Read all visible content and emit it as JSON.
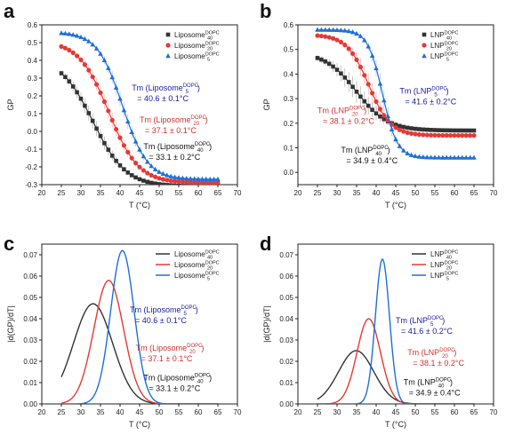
{
  "colors": {
    "black": "#333333",
    "red": "#e53935",
    "blue": "#1e6fd9",
    "ann_black": "#111111",
    "ann_red": "#d32f2f",
    "ann_blue": "#1a1a9c"
  },
  "xlabel": "T (°C)",
  "chart_data": [
    {
      "panel": "a",
      "type": "scatter",
      "xlabel": "T (°C)",
      "ylabel": "GP",
      "xlim": [
        20,
        70
      ],
      "ylim": [
        -0.3,
        0.6
      ],
      "xticks": [
        20,
        25,
        30,
        35,
        40,
        45,
        50,
        55,
        60,
        65,
        70
      ],
      "yticks": [
        -0.3,
        -0.2,
        -0.1,
        0.0,
        0.1,
        0.2,
        0.3,
        0.4,
        0.5,
        0.6
      ],
      "ytick_labels": [
        "-0.3",
        "-0.2",
        "-0.1",
        "0.0",
        "0.1",
        "0.2",
        "0.3",
        "0.4",
        "0.5",
        "0.6"
      ],
      "legend_position": "top-right",
      "series": [
        {
          "base": "Liposome",
          "sub": "40",
          "sup": "DOPC",
          "color": "black",
          "marker": "square",
          "top": 0.42,
          "bottom": -0.31,
          "tm": 33.1,
          "w": 4.2
        },
        {
          "base": "Liposome",
          "sub": "20",
          "sup": "DOPC",
          "color": "red",
          "marker": "circle",
          "top": 0.51,
          "bottom": -0.29,
          "tm": 37.1,
          "w": 3.8
        },
        {
          "base": "Liposome",
          "sub": "5",
          "sup": "DOPC",
          "color": "blue",
          "marker": "triangle",
          "top": 0.56,
          "bottom": -0.27,
          "tm": 40.6,
          "w": 3.2
        }
      ],
      "annotations": [
        {
          "line1": "Tm (Liposome",
          "sub": "5",
          "sup": "DOPC",
          "close": ")",
          "line2": "= 40.6 ± 0.1°C",
          "color": "ann_blue",
          "x": 43,
          "y": 0.23
        },
        {
          "line1": "Tm (Liposome",
          "sub": "20",
          "sup": "DOPC",
          "close": ")",
          "line2": "= 37.1 ± 0.1°C",
          "color": "ann_red",
          "x": 45,
          "y": 0.05
        },
        {
          "line1": "Tm (Liposome",
          "sub": "40",
          "sup": "DOPC",
          "close": ")",
          "line2": "= 33.1 ± 0.2°C",
          "color": "ann_black",
          "x": 46,
          "y": -0.1
        }
      ]
    },
    {
      "panel": "b",
      "type": "scatter",
      "xlabel": "T (°C)",
      "ylabel": "GP",
      "xlim": [
        20,
        70
      ],
      "ylim": [
        -0.05,
        0.6
      ],
      "xticks": [
        20,
        25,
        30,
        35,
        40,
        45,
        50,
        55,
        60,
        65,
        70
      ],
      "yticks": [
        0.0,
        0.1,
        0.2,
        0.3,
        0.4,
        0.5,
        0.6
      ],
      "ytick_labels": [
        "0.0",
        "0.1",
        "0.2",
        "0.3",
        "0.4",
        "0.5",
        "0.6"
      ],
      "legend_position": "top-right",
      "series": [
        {
          "base": "LNP",
          "sub": "40",
          "sup": "DOPC",
          "color": "black",
          "marker": "square",
          "top": 0.49,
          "bottom": 0.17,
          "tm": 34.9,
          "w": 4.0
        },
        {
          "base": "LNP",
          "sub": "20",
          "sup": "DOPC",
          "color": "red",
          "marker": "circle",
          "top": 0.56,
          "bottom": 0.15,
          "tm": 38.1,
          "w": 2.8
        },
        {
          "base": "LNP",
          "sub": "5",
          "sup": "DOPC",
          "color": "blue",
          "marker": "triangle",
          "top": 0.58,
          "bottom": 0.06,
          "tm": 41.6,
          "w": 1.9
        }
      ],
      "annotations": [
        {
          "line1": "Tm (LNP",
          "sub": "5",
          "sup": "DOPC",
          "close": ")",
          "line2": "= 41.6 ± 0.2°C",
          "color": "ann_blue",
          "x": 46,
          "y": 0.32
        },
        {
          "line1": "Tm (LNP",
          "sub": "20",
          "sup": "DOPC",
          "close": ")",
          "line2": "= 38.1 ± 0.2°C",
          "color": "ann_red",
          "x": 25,
          "y": 0.24
        },
        {
          "line1": "Tm (LNP",
          "sub": "40",
          "sup": "DOPC",
          "close": ")",
          "line2": "= 34.9 ± 0.4°C",
          "color": "ann_black",
          "x": 31,
          "y": 0.08
        }
      ]
    },
    {
      "panel": "c",
      "type": "line",
      "xlabel": "T (°C)",
      "ylabel": "|d(GP)/dT|",
      "xlim": [
        20,
        70
      ],
      "ylim": [
        0,
        0.075
      ],
      "xticks": [
        20,
        25,
        30,
        35,
        40,
        45,
        50,
        55,
        60,
        65,
        70
      ],
      "yticks": [
        0,
        0.01,
        0.02,
        0.03,
        0.04,
        0.05,
        0.06,
        0.07
      ],
      "ytick_labels": [
        "0.00",
        "0.01",
        "0.02",
        "0.03",
        "0.04",
        "0.05",
        "0.06",
        "0.07"
      ],
      "legend_position": "top-right",
      "series": [
        {
          "base": "Liposome",
          "sub": "40",
          "sup": "DOPC",
          "color": "black",
          "peak": 0.047,
          "tm": 33.1,
          "w": 5.0
        },
        {
          "base": "Liposome",
          "sub": "20",
          "sup": "DOPC",
          "color": "red",
          "peak": 0.058,
          "tm": 37.1,
          "w": 3.8
        },
        {
          "base": "Liposome",
          "sub": "5",
          "sup": "DOPC",
          "color": "blue",
          "peak": 0.072,
          "tm": 40.6,
          "w": 3.0
        }
      ],
      "annotations": [
        {
          "line1": "Tm (Liposome",
          "sub": "5",
          "sup": "DOPC",
          "close": ")",
          "line2": "= 40.6 ± 0.1°C",
          "color": "ann_blue",
          "x": 42.5,
          "y": 0.043
        },
        {
          "line1": "Tm (Liposome",
          "sub": "20",
          "sup": "DOPC",
          "close": ")",
          "line2": "= 37.1 ± 0.1°C",
          "color": "ann_red",
          "x": 44,
          "y": 0.025
        },
        {
          "line1": "Tm (Liposome",
          "sub": "40",
          "sup": "DOPC",
          "close": ")",
          "line2": "= 33.1 ± 0.2°C",
          "color": "ann_black",
          "x": 46,
          "y": 0.011
        }
      ]
    },
    {
      "panel": "d",
      "type": "line",
      "xlabel": "T (°C)",
      "ylabel": "|d(GP)/dT|",
      "xlim": [
        20,
        70
      ],
      "ylim": [
        0,
        0.075
      ],
      "xticks": [
        20,
        25,
        30,
        35,
        40,
        45,
        50,
        55,
        60,
        65,
        70
      ],
      "yticks": [
        0,
        0.01,
        0.02,
        0.03,
        0.04,
        0.05,
        0.06,
        0.07
      ],
      "ytick_labels": [
        "0.00",
        "0.01",
        "0.02",
        "0.03",
        "0.04",
        "0.05",
        "0.06",
        "0.07"
      ],
      "legend_position": "top-right",
      "series": [
        {
          "base": "LNP",
          "sub": "40",
          "sup": "DOPC",
          "color": "black",
          "peak": 0.025,
          "tm": 34.9,
          "w": 4.5
        },
        {
          "base": "LNP",
          "sub": "20",
          "sup": "DOPC",
          "color": "red",
          "peak": 0.04,
          "tm": 38.1,
          "w": 3.0
        },
        {
          "base": "LNP",
          "sub": "5",
          "sup": "DOPC",
          "color": "blue",
          "peak": 0.068,
          "tm": 41.6,
          "w": 1.8
        }
      ],
      "annotations": [
        {
          "line1": "Tm (LNP",
          "sub": "5",
          "sup": "DOPC",
          "close": ")",
          "line2": "= 41.6 ± 0.2°C",
          "color": "ann_blue",
          "x": 45,
          "y": 0.038
        },
        {
          "line1": "Tm (LNP",
          "sub": "20",
          "sup": "DOPC",
          "close": ")",
          "line2": "= 38.1 ± 0.2°C",
          "color": "ann_red",
          "x": 48,
          "y": 0.023
        },
        {
          "line1": "Tm (LNP",
          "sub": "40",
          "sup": "DOPC",
          "close": ")",
          "line2": "= 34.9 ± 0.4°C",
          "color": "ann_black",
          "x": 47,
          "y": 0.009
        }
      ]
    }
  ]
}
